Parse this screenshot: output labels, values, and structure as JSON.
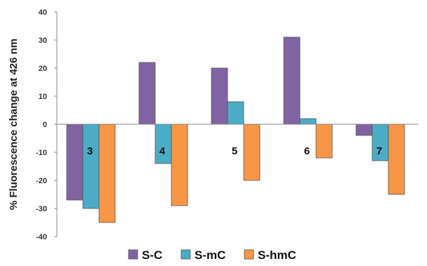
{
  "chart_data": {
    "type": "bar",
    "title": "",
    "xlabel": "",
    "ylabel": "% Fluorescence change at 426 nm",
    "categories": [
      "3",
      "4",
      "5",
      "6",
      "7"
    ],
    "series": [
      {
        "name": "S-C",
        "color": "#8064a2",
        "values": [
          -27,
          22,
          20,
          31,
          -4
        ]
      },
      {
        "name": "S-mC",
        "color": "#4bacc6",
        "values": [
          -30,
          -14,
          8,
          2,
          -13
        ]
      },
      {
        "name": "S-hmC",
        "color": "#f79646",
        "values": [
          -35,
          -29,
          -20,
          -12,
          -25
        ]
      }
    ],
    "ylim": [
      -40,
      40
    ],
    "yticks": [
      40,
      30,
      20,
      10,
      0,
      -10,
      -20,
      -30,
      -40
    ],
    "grid": false,
    "legend": "bottom"
  }
}
